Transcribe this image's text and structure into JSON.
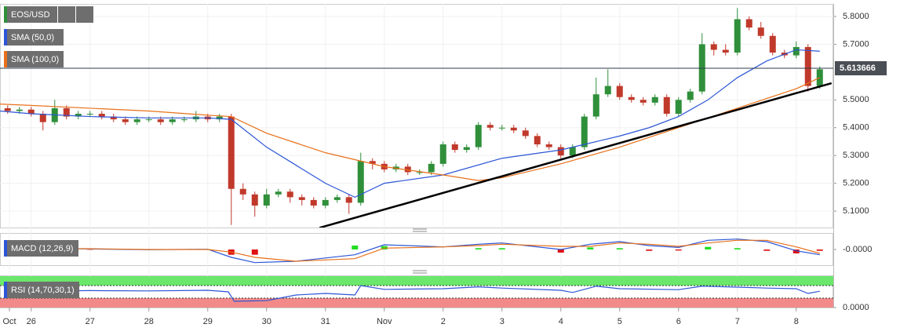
{
  "chart_data": [
    {
      "type": "candlestick",
      "title": "EOS/USD",
      "up_color": "#2f8f3a",
      "down_color": "#c0392b",
      "xlim": [
        -0.53,
        13.63
      ],
      "ylim": [
        5.041,
        5.845
      ],
      "grid": true,
      "xticks": [
        {
          "value": -0.37,
          "label": "Oct"
        },
        {
          "value": 0,
          "label": "26"
        },
        {
          "value": 1,
          "label": "27"
        },
        {
          "value": 2,
          "label": "28"
        },
        {
          "value": 3,
          "label": "29"
        },
        {
          "value": 4,
          "label": "30"
        },
        {
          "value": 5,
          "label": "31"
        },
        {
          "value": 6,
          "label": "Nov"
        },
        {
          "value": 7,
          "label": "2"
        },
        {
          "value": 8,
          "label": "3"
        },
        {
          "value": 9,
          "label": "4"
        },
        {
          "value": 10,
          "label": "5"
        },
        {
          "value": 11,
          "label": "6"
        },
        {
          "value": 12,
          "label": "7"
        },
        {
          "value": 13,
          "label": "8"
        }
      ],
      "yticks": [
        {
          "value": 5.1,
          "label": "5.1000"
        },
        {
          "value": 5.2,
          "label": "5.2000"
        },
        {
          "value": 5.3,
          "label": "5.3000"
        },
        {
          "value": 5.4,
          "label": "5.4000"
        },
        {
          "value": 5.5,
          "label": "5.5000"
        },
        {
          "value": 5.7,
          "label": "5.7000"
        },
        {
          "value": 5.8,
          "label": "5.8000"
        }
      ],
      "x": [
        -0.4,
        -0.2,
        0,
        0.2,
        0.4,
        0.6,
        0.8,
        1.0,
        1.2,
        1.4,
        1.6,
        1.8,
        2.0,
        2.2,
        2.4,
        2.6,
        2.8,
        3.0,
        3.2,
        3.4,
        3.6,
        3.8,
        4.0,
        4.2,
        4.4,
        4.6,
        4.8,
        5.0,
        5.2,
        5.4,
        5.6,
        5.8,
        6.0,
        6.2,
        6.4,
        6.6,
        6.8,
        7.0,
        7.2,
        7.4,
        7.6,
        7.8,
        8.0,
        8.2,
        8.4,
        8.6,
        8.8,
        9.0,
        9.2,
        9.4,
        9.6,
        9.8,
        10.0,
        10.2,
        10.4,
        10.6,
        10.8,
        11.0,
        11.2,
        11.4,
        11.6,
        11.8,
        12.0,
        12.2,
        12.4,
        12.6,
        12.8,
        13.0,
        13.2,
        13.4
      ],
      "ohlc": [
        [
          5.47,
          5.48,
          5.45,
          5.46
        ],
        [
          5.46,
          5.475,
          5.45,
          5.465
        ],
        [
          5.465,
          5.475,
          5.44,
          5.45
        ],
        [
          5.45,
          5.46,
          5.39,
          5.42
        ],
        [
          5.42,
          5.5,
          5.41,
          5.47
        ],
        [
          5.47,
          5.48,
          5.43,
          5.44
        ],
        [
          5.44,
          5.46,
          5.43,
          5.45
        ],
        [
          5.45,
          5.46,
          5.44,
          5.45
        ],
        [
          5.45,
          5.46,
          5.43,
          5.44
        ],
        [
          5.44,
          5.45,
          5.42,
          5.43
        ],
        [
          5.43,
          5.44,
          5.41,
          5.42
        ],
        [
          5.42,
          5.44,
          5.41,
          5.43
        ],
        [
          5.43,
          5.44,
          5.42,
          5.43
        ],
        [
          5.43,
          5.44,
          5.41,
          5.42
        ],
        [
          5.42,
          5.44,
          5.41,
          5.43
        ],
        [
          5.43,
          5.44,
          5.42,
          5.43
        ],
        [
          5.43,
          5.46,
          5.42,
          5.44
        ],
        [
          5.44,
          5.45,
          5.42,
          5.43
        ],
        [
          5.43,
          5.45,
          5.42,
          5.44
        ],
        [
          5.44,
          5.45,
          5.05,
          5.18
        ],
        [
          5.18,
          5.2,
          5.14,
          5.16
        ],
        [
          5.16,
          5.17,
          5.08,
          5.12
        ],
        [
          5.12,
          5.18,
          5.11,
          5.16
        ],
        [
          5.16,
          5.18,
          5.15,
          5.17
        ],
        [
          5.17,
          5.18,
          5.13,
          5.15
        ],
        [
          5.15,
          5.16,
          5.12,
          5.14
        ],
        [
          5.14,
          5.15,
          5.11,
          5.12
        ],
        [
          5.12,
          5.15,
          5.11,
          5.14
        ],
        [
          5.14,
          5.16,
          5.13,
          5.15
        ],
        [
          5.15,
          5.16,
          5.09,
          5.13
        ],
        [
          5.13,
          5.31,
          5.12,
          5.28
        ],
        [
          5.28,
          5.29,
          5.25,
          5.27
        ],
        [
          5.27,
          5.28,
          5.24,
          5.25
        ],
        [
          5.25,
          5.27,
          5.24,
          5.26
        ],
        [
          5.26,
          5.27,
          5.23,
          5.24
        ],
        [
          5.24,
          5.25,
          5.23,
          5.24
        ],
        [
          5.24,
          5.28,
          5.23,
          5.27
        ],
        [
          5.27,
          5.35,
          5.26,
          5.34
        ],
        [
          5.34,
          5.35,
          5.31,
          5.32
        ],
        [
          5.32,
          5.34,
          5.31,
          5.33
        ],
        [
          5.33,
          5.42,
          5.32,
          5.41
        ],
        [
          5.41,
          5.42,
          5.39,
          5.4
        ],
        [
          5.4,
          5.41,
          5.39,
          5.4
        ],
        [
          5.4,
          5.41,
          5.38,
          5.39
        ],
        [
          5.39,
          5.4,
          5.36,
          5.37
        ],
        [
          5.37,
          5.38,
          5.33,
          5.34
        ],
        [
          5.34,
          5.35,
          5.32,
          5.33
        ],
        [
          5.33,
          5.34,
          5.29,
          5.3
        ],
        [
          5.3,
          5.34,
          5.29,
          5.33
        ],
        [
          5.33,
          5.45,
          5.32,
          5.44
        ],
        [
          5.44,
          5.58,
          5.43,
          5.52
        ],
        [
          5.52,
          5.61,
          5.51,
          5.55
        ],
        [
          5.55,
          5.56,
          5.5,
          5.51
        ],
        [
          5.51,
          5.52,
          5.49,
          5.5
        ],
        [
          5.5,
          5.51,
          5.48,
          5.49
        ],
        [
          5.49,
          5.52,
          5.48,
          5.51
        ],
        [
          5.51,
          5.52,
          5.44,
          5.45
        ],
        [
          5.45,
          5.51,
          5.44,
          5.5
        ],
        [
          5.5,
          5.54,
          5.49,
          5.53
        ],
        [
          5.53,
          5.74,
          5.52,
          5.7
        ],
        [
          5.7,
          5.71,
          5.66,
          5.68
        ],
        [
          5.68,
          5.7,
          5.66,
          5.67
        ],
        [
          5.67,
          5.83,
          5.66,
          5.79
        ],
        [
          5.79,
          5.8,
          5.75,
          5.76
        ],
        [
          5.76,
          5.78,
          5.72,
          5.73
        ],
        [
          5.73,
          5.74,
          5.66,
          5.67
        ],
        [
          5.67,
          5.68,
          5.65,
          5.66
        ],
        [
          5.66,
          5.71,
          5.65,
          5.69
        ],
        [
          5.69,
          5.7,
          5.53,
          5.55
        ],
        [
          5.55,
          5.62,
          5.54,
          5.61
        ]
      ],
      "series": [
        {
          "name": "SMA (50,0)",
          "color": "#2b55d6",
          "x": [
            -0.53,
            0,
            1,
            2,
            3,
            3.4,
            4,
            5,
            5.5,
            6,
            7,
            8,
            9,
            10,
            10.5,
            11,
            11.5,
            12,
            12.5,
            13,
            13.4
          ],
          "values": [
            5.46,
            5.45,
            5.44,
            5.435,
            5.435,
            5.43,
            5.33,
            5.2,
            5.15,
            5.2,
            5.23,
            5.29,
            5.32,
            5.37,
            5.4,
            5.44,
            5.5,
            5.58,
            5.64,
            5.68,
            5.675
          ]
        },
        {
          "name": "SMA (100,0)",
          "color": "#e8701a",
          "x": [
            -0.53,
            0,
            1,
            2,
            3,
            3.4,
            4,
            5,
            6,
            7,
            7.6,
            8,
            9,
            10,
            11,
            12,
            13,
            13.4
          ],
          "values": [
            5.485,
            5.48,
            5.47,
            5.46,
            5.445,
            5.44,
            5.38,
            5.31,
            5.26,
            5.23,
            5.21,
            5.22,
            5.27,
            5.33,
            5.4,
            5.47,
            5.54,
            5.58
          ]
        }
      ],
      "trendline": {
        "color": "#000000",
        "x": [
          4.9,
          13.6
        ],
        "values": [
          5.04,
          5.56
        ]
      },
      "last_price": 5.613666
    },
    {
      "type": "macd",
      "title": "MACD (12,26,9)",
      "ylim": [
        -0.06,
        0.06
      ],
      "yticks": [
        {
          "value": 0,
          "label": "-0.0000"
        }
      ],
      "up_color": "#22dd22",
      "down_color": "#e01010",
      "x": [
        -0.4,
        0,
        1,
        2,
        3,
        3.4,
        3.8,
        4.5,
        5.5,
        6,
        7,
        7.6,
        8,
        9,
        9.5,
        10,
        10.5,
        11,
        11.5,
        12,
        12.5,
        13,
        13.4
      ],
      "series": [
        {
          "color": "#2b55d6",
          "values": [
            0.005,
            0.004,
            0.002,
            -0.001,
            0.001,
            -0.03,
            -0.05,
            -0.045,
            -0.02,
            0.018,
            0.01,
            0.02,
            0.025,
            0.0,
            0.02,
            0.03,
            0.015,
            0.008,
            0.035,
            0.04,
            0.03,
            -0.005,
            -0.02
          ]
        },
        {
          "color": "#e8701a",
          "values": [
            0.004,
            0.004,
            0.003,
            0.0,
            0.0,
            -0.01,
            -0.03,
            -0.045,
            -0.035,
            0.005,
            0.01,
            0.015,
            0.02,
            0.012,
            0.012,
            0.025,
            0.02,
            0.012,
            0.025,
            0.035,
            0.035,
            0.01,
            -0.015
          ]
        }
      ],
      "histogram": [
        0.001,
        0.0,
        -0.001,
        -0.001,
        0.001,
        -0.02,
        -0.02,
        0.0,
        0.015,
        0.013,
        0.0,
        0.005,
        0.005,
        -0.012,
        0.008,
        0.005,
        -0.005,
        -0.004,
        0.01,
        0.005,
        -0.005,
        -0.015,
        -0.005
      ]
    },
    {
      "type": "rsi",
      "title": "RSI (14,70,30,1)",
      "ylim": [
        0,
        100
      ],
      "yticks": [
        {
          "value": 0,
          "label": "0.0000"
        }
      ],
      "color": "#2b55d6",
      "bands": [
        {
          "from": 70,
          "to": 100,
          "color": "#6be86b"
        },
        {
          "from": 0,
          "to": 30,
          "color": "#f28a8a"
        }
      ],
      "x": [
        -0.4,
        0,
        1,
        2,
        3,
        3.35,
        3.45,
        4,
        4.5,
        5,
        5.5,
        5.6,
        6,
        7,
        7.6,
        8,
        9,
        9.2,
        9.6,
        10,
        11,
        11.4,
        12,
        12.5,
        13,
        13.2,
        13.4
      ],
      "values": [
        55,
        52,
        54,
        53,
        55,
        50,
        20,
        22,
        40,
        45,
        40,
        70,
        58,
        60,
        66,
        62,
        55,
        48,
        68,
        60,
        57,
        68,
        65,
        62,
        60,
        45,
        52
      ]
    }
  ]
}
